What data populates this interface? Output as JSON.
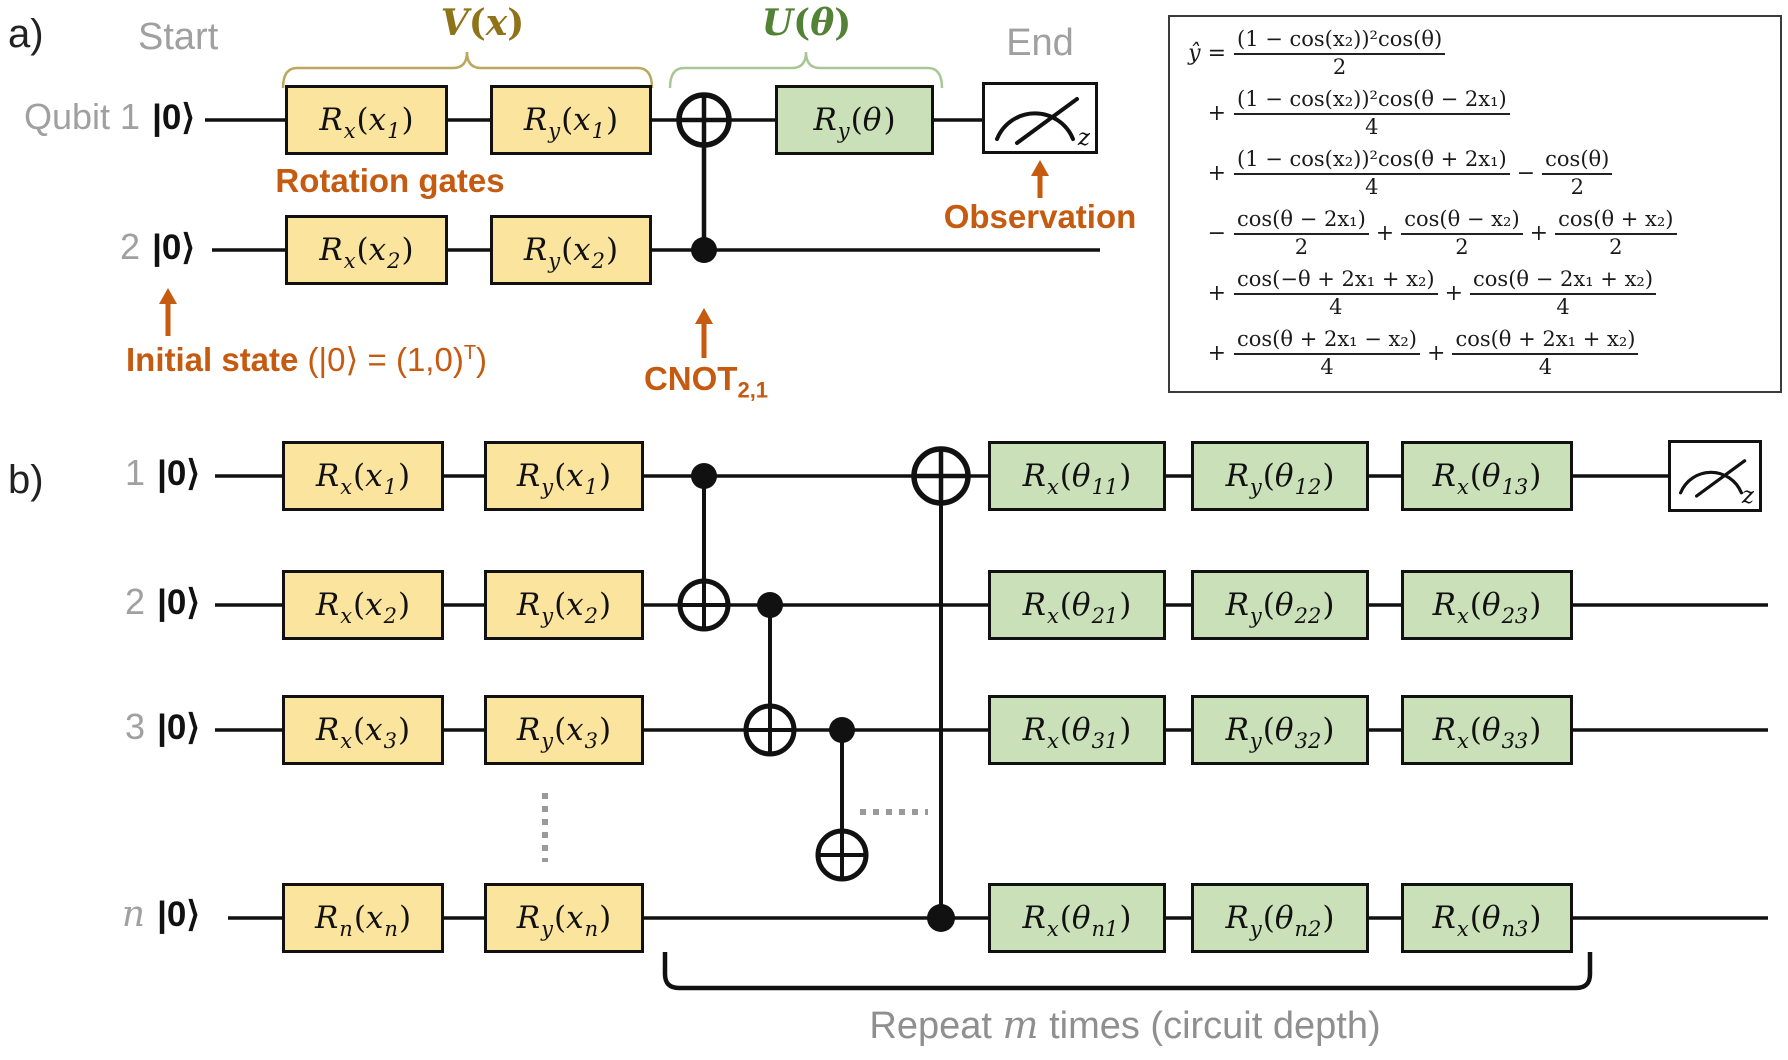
{
  "panel_a": {
    "label": "a)",
    "start": "Start",
    "end": "End",
    "v_block": {
      "name": "V",
      "open": "(",
      "arg": "x",
      "close": ")"
    },
    "u_block": {
      "name": "U",
      "open": "(",
      "arg": "θ",
      "close": ")"
    },
    "rows": [
      {
        "label": "Qubit 1",
        "ket": "|0⟩"
      },
      {
        "label": "2",
        "ket": "|0⟩"
      }
    ],
    "gates_row1": [
      {
        "pre": "R",
        "sub": "x",
        "open": "(",
        "arg": "x",
        "argsub": "1",
        "close": ")"
      },
      {
        "pre": "R",
        "sub": "y",
        "open": "(",
        "arg": "x",
        "argsub": "1",
        "close": ")"
      }
    ],
    "gates_row2": [
      {
        "pre": "R",
        "sub": "x",
        "open": "(",
        "arg": "x",
        "argsub": "2",
        "close": ")"
      },
      {
        "pre": "R",
        "sub": "y",
        "open": "(",
        "arg": "x",
        "argsub": "2",
        "close": ")"
      }
    ],
    "gate_theta": {
      "pre": "R",
      "sub": "y",
      "open": "(",
      "arg": "θ",
      "argsub": "",
      "close": ")"
    },
    "measure_sub": "z",
    "ann_rotation": "Rotation gates",
    "ann_observation": "Observation",
    "ann_initial_bold": "Initial state",
    "ann_initial_math": " (|0⟩ = (1,0)",
    "ann_initial_sup": "T",
    "ann_initial_close": ")",
    "ann_cnot": "CNOT",
    "ann_cnot_sub": "2,1"
  },
  "formula": {
    "lead": "ŷ =",
    "lines": [
      {
        "terms": [
          {
            "sign": "",
            "num": "(1 − cos(x₂))²cos(θ)",
            "den": "2"
          }
        ]
      },
      {
        "terms": [
          {
            "sign": "+",
            "num": "(1 − cos(x₂))²cos(θ − 2x₁)",
            "den": "4"
          }
        ]
      },
      {
        "terms": [
          {
            "sign": "+",
            "num": "(1 − cos(x₂))²cos(θ + 2x₁)",
            "den": "4"
          },
          {
            "sign": "−",
            "num": "cos(θ)",
            "den": "2"
          }
        ]
      },
      {
        "terms": [
          {
            "sign": "−",
            "num": "cos(θ − 2x₁)",
            "den": "2"
          },
          {
            "sign": "+",
            "num": "cos(θ − x₂)",
            "den": "2"
          },
          {
            "sign": "+",
            "num": "cos(θ + x₂)",
            "den": "2"
          }
        ]
      },
      {
        "terms": [
          {
            "sign": "+",
            "num": "cos(−θ + 2x₁ + x₂)",
            "den": "4"
          },
          {
            "sign": "+",
            "num": "cos(θ − 2x₁ + x₂)",
            "den": "4"
          }
        ]
      },
      {
        "terms": [
          {
            "sign": "+",
            "num": "cos(θ + 2x₁ − x₂)",
            "den": "4"
          },
          {
            "sign": "+",
            "num": "cos(θ + 2x₁ + x₂)",
            "den": "4"
          }
        ]
      }
    ]
  },
  "panel_b": {
    "label": "b)",
    "rows": [
      {
        "num": "1",
        "ket": "|0⟩",
        "gates": [
          {
            "pre": "R",
            "sub": "x",
            "open": "(",
            "arg": "x",
            "argsub": "1",
            "close": ")"
          },
          {
            "pre": "R",
            "sub": "y",
            "open": "(",
            "arg": "x",
            "argsub": "1",
            "close": ")"
          },
          {
            "pre": "R",
            "sub": "x",
            "open": "(",
            "arg": "θ",
            "argsub": "11",
            "close": ")"
          },
          {
            "pre": "R",
            "sub": "y",
            "open": "(",
            "arg": "θ",
            "argsub": "12",
            "close": ")"
          },
          {
            "pre": "R",
            "sub": "x",
            "open": "(",
            "arg": "θ",
            "argsub": "13",
            "close": ")"
          }
        ]
      },
      {
        "num": "2",
        "ket": "|0⟩",
        "gates": [
          {
            "pre": "R",
            "sub": "x",
            "open": "(",
            "arg": "x",
            "argsub": "2",
            "close": ")"
          },
          {
            "pre": "R",
            "sub": "y",
            "open": "(",
            "arg": "x",
            "argsub": "2",
            "close": ")"
          },
          {
            "pre": "R",
            "sub": "x",
            "open": "(",
            "arg": "θ",
            "argsub": "21",
            "close": ")"
          },
          {
            "pre": "R",
            "sub": "y",
            "open": "(",
            "arg": "θ",
            "argsub": "22",
            "close": ")"
          },
          {
            "pre": "R",
            "sub": "x",
            "open": "(",
            "arg": "θ",
            "argsub": "23",
            "close": ")"
          }
        ]
      },
      {
        "num": "3",
        "ket": "|0⟩",
        "gates": [
          {
            "pre": "R",
            "sub": "x",
            "open": "(",
            "arg": "x",
            "argsub": "3",
            "close": ")"
          },
          {
            "pre": "R",
            "sub": "y",
            "open": "(",
            "arg": "x",
            "argsub": "3",
            "close": ")"
          },
          {
            "pre": "R",
            "sub": "x",
            "open": "(",
            "arg": "θ",
            "argsub": "31",
            "close": ")"
          },
          {
            "pre": "R",
            "sub": "y",
            "open": "(",
            "arg": "θ",
            "argsub": "32",
            "close": ")"
          },
          {
            "pre": "R",
            "sub": "x",
            "open": "(",
            "arg": "θ",
            "argsub": "33",
            "close": ")"
          }
        ]
      },
      {
        "num": "n",
        "ket": "|0⟩",
        "gates": [
          {
            "pre": "R",
            "sub": "n",
            "open": "(",
            "arg": "x",
            "argsub": "n",
            "close": ")"
          },
          {
            "pre": "R",
            "sub": "y",
            "open": "(",
            "arg": "x",
            "argsub": "n",
            "close": ")"
          },
          {
            "pre": "R",
            "sub": "x",
            "open": "(",
            "arg": "θ",
            "argsub": "n1",
            "close": ")"
          },
          {
            "pre": "R",
            "sub": "y",
            "open": "(",
            "arg": "θ",
            "argsub": "n2",
            "close": ")"
          },
          {
            "pre": "R",
            "sub": "x",
            "open": "(",
            "arg": "θ",
            "argsub": "n3",
            "close": ")"
          }
        ]
      }
    ],
    "measure_sub": "z",
    "repeat_pre": "Repeat ",
    "repeat_m": "m",
    "repeat_post": " times (circuit depth)"
  },
  "colors": {
    "gate_yellow": "#fbe49d",
    "gate_green": "#c9e0b8",
    "annotation_orange": "#c55a11",
    "v_olive": "#8f7319",
    "u_green": "#538135",
    "gray_label": "#a0a0a0",
    "wire_black": "#111111"
  }
}
